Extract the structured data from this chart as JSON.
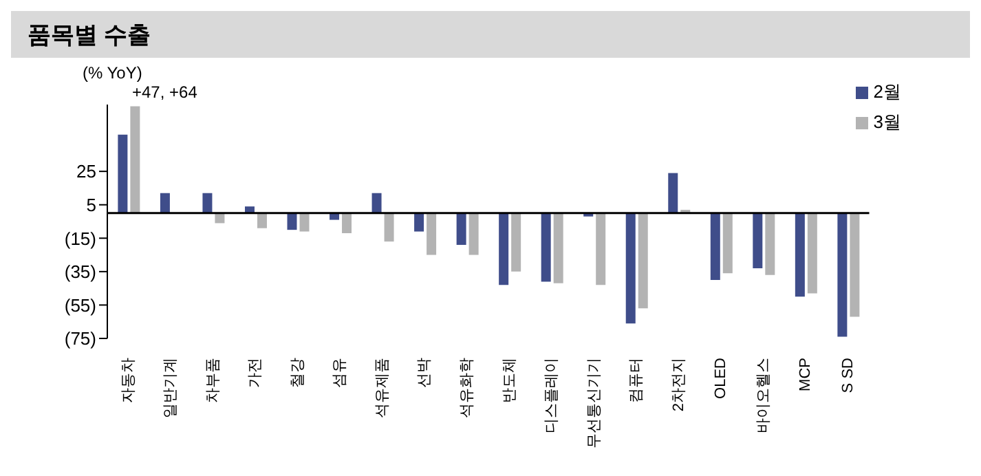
{
  "chart_data": {
    "type": "bar",
    "title": "품목별 수출",
    "ylabel": "(% YoY)",
    "categories": [
      "자동차",
      "일반기계",
      "차부품",
      "가전",
      "철강",
      "섬유",
      "석유제품",
      "선박",
      "석유화학",
      "반도체",
      "디스플레이",
      "무선통신기기",
      "컴퓨터",
      "2차전지",
      "OLED",
      "바이오헬스",
      "MCP",
      "S SD"
    ],
    "series": [
      {
        "name": "2월",
        "color": "#3f4d8a",
        "values": [
          47,
          12,
          12,
          4,
          -10,
          -4,
          12,
          -11,
          -19,
          -43,
          -41,
          -2,
          -66,
          24,
          -40,
          -33,
          -50,
          -74
        ]
      },
      {
        "name": "3월",
        "color": "#b3b3b3",
        "values": [
          64,
          0,
          -6,
          -9,
          -11,
          -12,
          -17,
          -25,
          -25,
          -35,
          -42,
          -43,
          -57,
          2,
          -36,
          -37,
          -48,
          -62
        ]
      }
    ],
    "ylim": [
      -75,
      65
    ],
    "yticks": [
      25,
      5,
      {
        "value": -15,
        "label": "(15)"
      },
      {
        "value": -35,
        "label": "(35)"
      },
      {
        "value": -55,
        "label": "(55)"
      },
      {
        "value": -75,
        "label": "(75)"
      }
    ],
    "annotations": [
      "+47, +64"
    ],
    "grid": false,
    "legend": "top right"
  }
}
